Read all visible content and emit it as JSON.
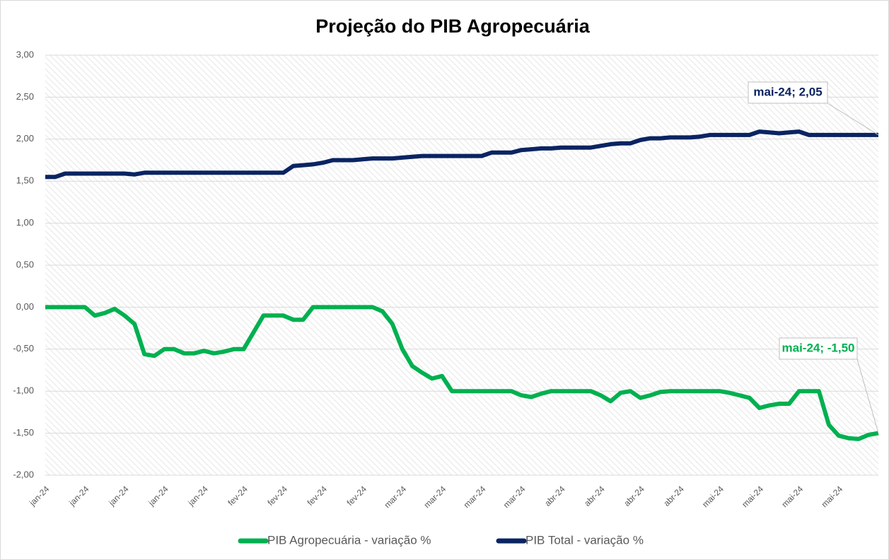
{
  "chart_data": {
    "type": "line",
    "title": "Projeção do PIB Agropecuária",
    "categories": [
      "jan-24",
      null,
      null,
      null,
      "jan-24",
      null,
      null,
      null,
      "jan-24",
      null,
      null,
      null,
      "jan-24",
      null,
      null,
      null,
      "jan-24",
      null,
      null,
      null,
      "fev-24",
      null,
      null,
      null,
      "fev-24",
      null,
      null,
      null,
      "fev-24",
      null,
      null,
      null,
      "fev-24",
      null,
      null,
      null,
      "mar-24",
      null,
      null,
      null,
      "mar-24",
      null,
      null,
      null,
      "mar-24",
      null,
      null,
      null,
      "mar-24",
      null,
      null,
      null,
      "abr-24",
      null,
      null,
      null,
      "abr-24",
      null,
      null,
      null,
      "abr-24",
      null,
      null,
      null,
      "abr-24",
      null,
      null,
      null,
      "mai-24",
      null,
      null,
      null,
      "mai-24",
      null,
      null,
      null,
      "mai-24",
      null,
      null,
      null,
      "mai-24",
      null,
      null,
      null,
      null
    ],
    "series": [
      {
        "name": "PIB Agropecuária - variação %",
        "color": "#00b050",
        "last_label": "mai-24; -1,50",
        "values": [
          0,
          0,
          0,
          0,
          0,
          -0.1,
          -0.07,
          -0.02,
          -0.1,
          -0.2,
          -0.56,
          -0.58,
          -0.5,
          -0.5,
          -0.55,
          -0.55,
          -0.52,
          -0.55,
          -0.53,
          -0.5,
          -0.5,
          -0.3,
          -0.1,
          -0.1,
          -0.1,
          -0.15,
          -0.15,
          0,
          0,
          0,
          0,
          0,
          0,
          0,
          -0.05,
          -0.2,
          -0.5,
          -0.7,
          -0.78,
          -0.85,
          -0.82,
          -1.0,
          -1.0,
          -1.0,
          -1.0,
          -1.0,
          -1.0,
          -1.0,
          -1.05,
          -1.07,
          -1.03,
          -1.0,
          -1.0,
          -1.0,
          -1.0,
          -1.0,
          -1.05,
          -1.12,
          -1.02,
          -1.0,
          -1.08,
          -1.05,
          -1.01,
          -1.0,
          -1.0,
          -1.0,
          -1.0,
          -1.0,
          -1.0,
          -1.02,
          -1.05,
          -1.08,
          -1.2,
          -1.17,
          -1.15,
          -1.15,
          -1.0,
          -1.0,
          -1.0,
          -1.4,
          -1.53,
          -1.56,
          -1.57,
          -1.52,
          -1.5
        ]
      },
      {
        "name": "PIB Total - variação %",
        "color": "#0a2462",
        "last_label": "mai-24; 2,05",
        "values": [
          1.55,
          1.55,
          1.59,
          1.59,
          1.59,
          1.59,
          1.59,
          1.59,
          1.59,
          1.58,
          1.6,
          1.6,
          1.6,
          1.6,
          1.6,
          1.6,
          1.6,
          1.6,
          1.6,
          1.6,
          1.6,
          1.6,
          1.6,
          1.6,
          1.6,
          1.68,
          1.69,
          1.7,
          1.72,
          1.75,
          1.75,
          1.75,
          1.76,
          1.77,
          1.77,
          1.77,
          1.78,
          1.79,
          1.8,
          1.8,
          1.8,
          1.8,
          1.8,
          1.8,
          1.8,
          1.84,
          1.84,
          1.84,
          1.87,
          1.88,
          1.89,
          1.89,
          1.9,
          1.9,
          1.9,
          1.9,
          1.92,
          1.94,
          1.95,
          1.95,
          1.99,
          2.01,
          2.01,
          2.02,
          2.02,
          2.02,
          2.03,
          2.05,
          2.05,
          2.05,
          2.05,
          2.05,
          2.09,
          2.08,
          2.07,
          2.08,
          2.09,
          2.05,
          2.05,
          2.05,
          2.05,
          2.05,
          2.05,
          2.05,
          2.05
        ]
      }
    ],
    "ylim": [
      -2,
      3
    ],
    "yticks": [
      {
        "value": -2,
        "label": "-2,00"
      },
      {
        "value": -1.5,
        "label": "-1,50"
      },
      {
        "value": -1,
        "label": "-1,00"
      },
      {
        "value": -0.5,
        "label": "-0,50"
      },
      {
        "value": 0,
        "label": "0,00"
      },
      {
        "value": 0.5,
        "label": "0,50"
      },
      {
        "value": 1,
        "label": "1,00"
      },
      {
        "value": 1.5,
        "label": "1,50"
      },
      {
        "value": 2,
        "label": "2,00"
      },
      {
        "value": 2.5,
        "label": "2,50"
      },
      {
        "value": 3,
        "label": "3,00"
      }
    ],
    "grid": true,
    "legend": "bottom"
  }
}
